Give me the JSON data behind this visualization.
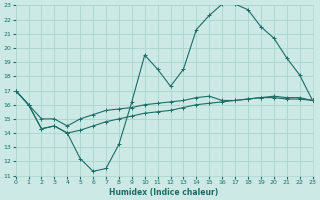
{
  "bg_color": "#cce9e5",
  "grid_color": "#aad5d0",
  "line_color": "#1a6e64",
  "xlabel": "Humidex (Indice chaleur)",
  "xlim": [
    0,
    23
  ],
  "ylim": [
    11,
    23
  ],
  "xticks": [
    0,
    1,
    2,
    3,
    4,
    5,
    6,
    7,
    8,
    9,
    10,
    11,
    12,
    13,
    14,
    15,
    16,
    17,
    18,
    19,
    20,
    21,
    22,
    23
  ],
  "yticks": [
    11,
    12,
    13,
    14,
    15,
    16,
    17,
    18,
    19,
    20,
    21,
    22,
    23
  ],
  "line1_x": [
    0,
    1,
    2,
    3,
    4,
    5,
    6,
    7,
    8,
    9,
    10,
    11,
    12,
    13,
    14,
    15,
    16,
    17,
    18,
    19,
    20,
    21,
    22,
    23
  ],
  "line1_y": [
    17,
    16,
    14.3,
    14.5,
    14.0,
    12.2,
    11.3,
    11.5,
    13.2,
    16.2,
    19.5,
    18.5,
    17.3,
    18.5,
    21.3,
    22.3,
    23.1,
    23.1,
    22.7,
    21.5,
    20.7,
    19.3,
    18.1,
    16.3
  ],
  "line2_x": [
    0,
    1,
    2,
    3,
    4,
    5,
    6,
    7,
    8,
    9,
    10,
    11,
    12,
    13,
    14,
    15,
    16,
    17,
    18,
    19,
    20,
    21,
    22,
    23
  ],
  "line2_y": [
    17,
    16.0,
    15.0,
    15.0,
    14.5,
    15.0,
    15.3,
    15.6,
    15.7,
    15.8,
    16.0,
    16.1,
    16.2,
    16.3,
    16.5,
    16.6,
    16.3,
    16.3,
    16.4,
    16.5,
    16.5,
    16.4,
    16.4,
    16.3
  ],
  "line3_x": [
    0,
    1,
    2,
    3,
    4,
    5,
    6,
    7,
    8,
    9,
    10,
    11,
    12,
    13,
    14,
    15,
    16,
    17,
    18,
    19,
    20,
    21,
    22,
    23
  ],
  "line3_y": [
    17,
    16.0,
    14.3,
    14.5,
    14.0,
    14.2,
    14.5,
    14.8,
    15.0,
    15.2,
    15.4,
    15.5,
    15.6,
    15.8,
    16.0,
    16.1,
    16.2,
    16.3,
    16.4,
    16.5,
    16.6,
    16.5,
    16.5,
    16.3
  ]
}
